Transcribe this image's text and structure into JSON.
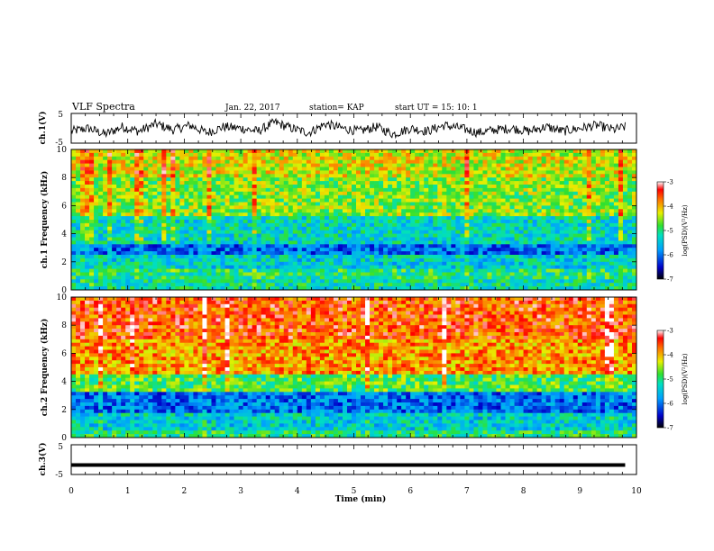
{
  "header": {
    "title": "VLF Spectra",
    "date": "Jan. 22, 2017",
    "station": "station= KAP",
    "start": "start  UT =   15: 10: 1"
  },
  "chart_data": [
    {
      "type": "line",
      "title": "",
      "xlabel": "",
      "ylabel": "ch.1(V)",
      "xlim": [
        0,
        10
      ],
      "ylim": [
        -5,
        5
      ],
      "yticks": [
        "5",
        "-5"
      ],
      "series": [
        {
          "name": "",
          "color": "#000000",
          "x": [
            0,
            0.3,
            0.6,
            0.9,
            1.2,
            1.5,
            1.8,
            2.1,
            2.4,
            2.7,
            3.0,
            3.3,
            3.6,
            3.9,
            4.2,
            4.5,
            4.8,
            5.1,
            5.4,
            5.7,
            6.0,
            6.3,
            6.6,
            6.9,
            7.2,
            7.5,
            7.8,
            8.1,
            8.4,
            8.7,
            9.0,
            9.3,
            9.6,
            9.8
          ],
          "y": [
            -1,
            0,
            -2,
            0.5,
            -1,
            1.5,
            -0.5,
            1,
            -1.5,
            0.5,
            0,
            -1,
            2,
            0,
            -1.5,
            1.5,
            0,
            -1,
            0.5,
            -2,
            0,
            -1,
            1,
            0,
            -1.5,
            -0.5,
            0,
            -1,
            0.5,
            -1,
            0,
            1,
            -0.5,
            0.5
          ]
        }
      ]
    },
    {
      "type": "heatmap",
      "title": "",
      "xlabel": "",
      "ylabel": "ch.1 Frequency (kHz)",
      "xlim": [
        0,
        10
      ],
      "ylim": [
        0,
        10
      ],
      "yticks": [
        0,
        2,
        4,
        6,
        8,
        10
      ],
      "colorbar": {
        "label": "log(PSD)(V²/Hz)",
        "range": [
          -7,
          -3
        ],
        "ticks": [
          "-3",
          "-4",
          "-5",
          "-6",
          "-7"
        ]
      },
      "bands": [
        {
          "f": [
            0,
            0.8
          ],
          "level": -5.2
        },
        {
          "f": [
            0.8,
            1.6
          ],
          "level": -5.0
        },
        {
          "f": [
            1.6,
            2.6
          ],
          "level": -5.4
        },
        {
          "f": [
            2.6,
            3.2
          ],
          "level": -6.0
        },
        {
          "f": [
            3.2,
            5.2
          ],
          "level": -5.3
        },
        {
          "f": [
            5.2,
            8.0
          ],
          "level": -4.6
        },
        {
          "f": [
            8.0,
            10.0
          ],
          "level": -4.3
        }
      ]
    },
    {
      "type": "heatmap",
      "title": "",
      "xlabel": "",
      "ylabel": "ch.2 Frequency (kHz)",
      "xlim": [
        0,
        10
      ],
      "ylim": [
        0,
        10
      ],
      "yticks": [
        0,
        2,
        4,
        6,
        8,
        10
      ],
      "colorbar": {
        "label": "log(PSD)(V²/Hz)",
        "range": [
          -7,
          -3
        ],
        "ticks": [
          "-3",
          "-4",
          "-5",
          "-6",
          "-7"
        ]
      },
      "bands": [
        {
          "f": [
            0,
            0.6
          ],
          "level": -5.0
        },
        {
          "f": [
            0.6,
            1.8
          ],
          "level": -5.4
        },
        {
          "f": [
            1.8,
            3.2
          ],
          "level": -6.0
        },
        {
          "f": [
            3.2,
            4.4
          ],
          "level": -4.8
        },
        {
          "f": [
            4.4,
            7.0
          ],
          "level": -3.9
        },
        {
          "f": [
            7.0,
            10.0
          ],
          "level": -3.6
        }
      ]
    },
    {
      "type": "line",
      "title": "",
      "xlabel": "Time (min)",
      "ylabel": "ch.3(V)",
      "xlim": [
        0,
        10
      ],
      "ylim": [
        -5,
        5
      ],
      "yticks": [
        "5",
        "-5"
      ],
      "xticks": [
        "0",
        "1",
        "2",
        "3",
        "4",
        "5",
        "6",
        "7",
        "8",
        "9",
        "10"
      ],
      "series": [
        {
          "name": "",
          "color": "#000000",
          "x": [
            0,
            9.8
          ],
          "y": [
            -1.8,
            -1.8
          ]
        }
      ]
    }
  ]
}
